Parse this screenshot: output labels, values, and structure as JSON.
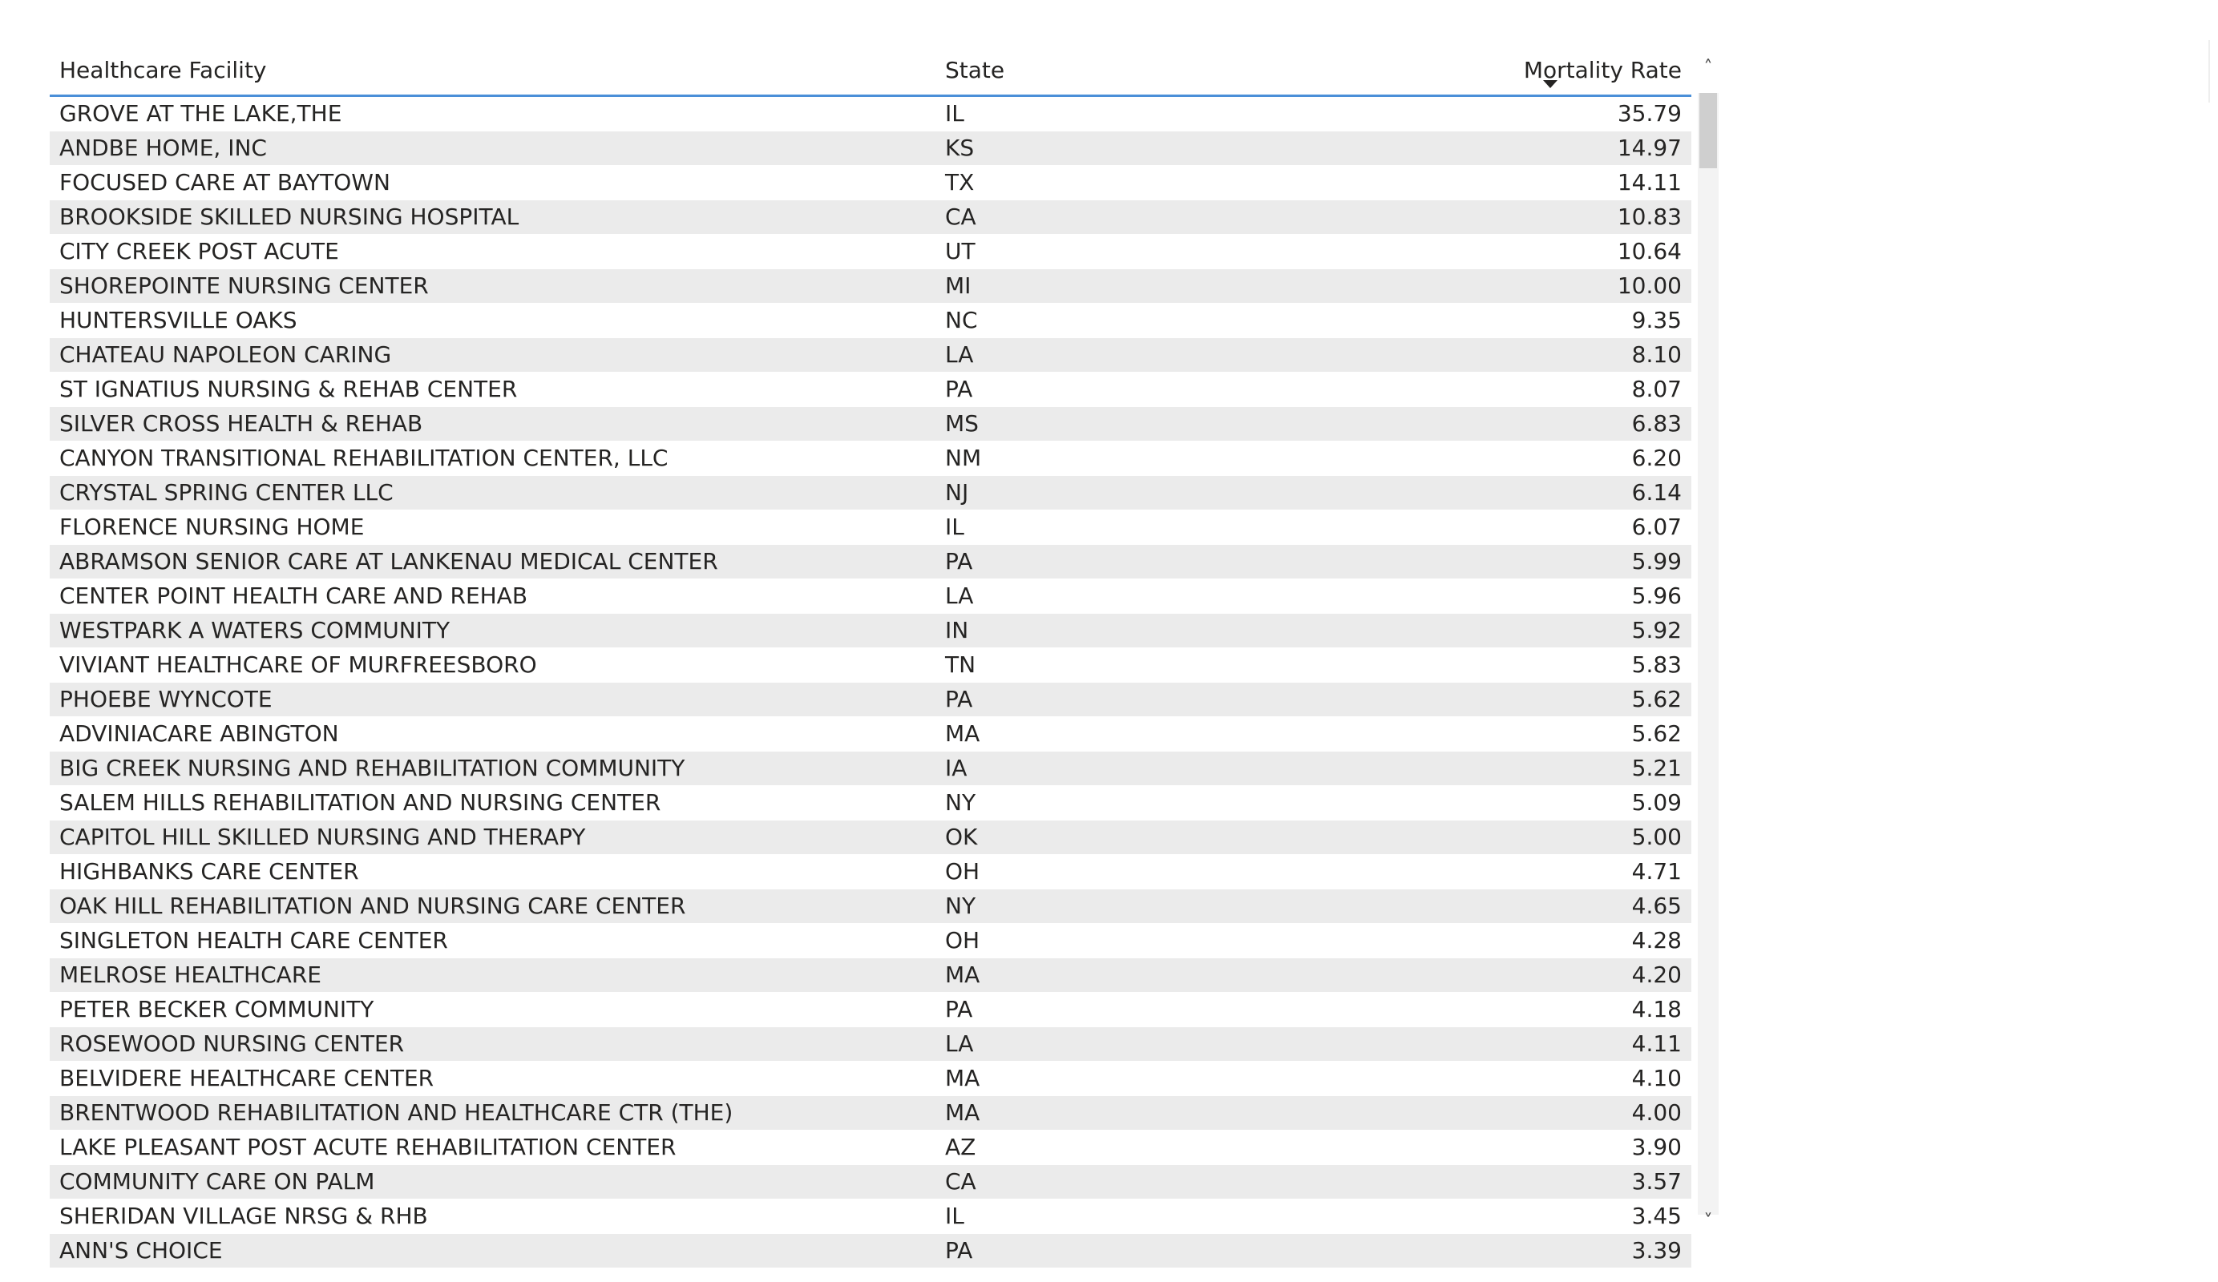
{
  "table": {
    "headers": {
      "facility": "Healthcare Facility",
      "state": "State",
      "rate": "Mortality Rate"
    },
    "sort": {
      "column": "Mortality Rate",
      "direction": "descending"
    },
    "rows": [
      {
        "facility": "GROVE AT THE LAKE,THE",
        "state": "IL",
        "rate": "35.79"
      },
      {
        "facility": "ANDBE HOME, INC",
        "state": "KS",
        "rate": "14.97"
      },
      {
        "facility": "FOCUSED CARE AT BAYTOWN",
        "state": "TX",
        "rate": "14.11"
      },
      {
        "facility": "BROOKSIDE SKILLED NURSING HOSPITAL",
        "state": "CA",
        "rate": "10.83"
      },
      {
        "facility": "CITY CREEK POST ACUTE",
        "state": "UT",
        "rate": "10.64"
      },
      {
        "facility": "SHOREPOINTE NURSING CENTER",
        "state": "MI",
        "rate": "10.00"
      },
      {
        "facility": "HUNTERSVILLE OAKS",
        "state": "NC",
        "rate": "9.35"
      },
      {
        "facility": "CHATEAU NAPOLEON CARING",
        "state": "LA",
        "rate": "8.10"
      },
      {
        "facility": "ST IGNATIUS NURSING & REHAB CENTER",
        "state": "PA",
        "rate": "8.07"
      },
      {
        "facility": "SILVER CROSS HEALTH & REHAB",
        "state": "MS",
        "rate": "6.83"
      },
      {
        "facility": "CANYON TRANSITIONAL REHABILITATION CENTER, LLC",
        "state": "NM",
        "rate": "6.20"
      },
      {
        "facility": "CRYSTAL SPRING CENTER LLC",
        "state": "NJ",
        "rate": "6.14"
      },
      {
        "facility": "FLORENCE NURSING HOME",
        "state": "IL",
        "rate": "6.07"
      },
      {
        "facility": "ABRAMSON SENIOR CARE AT LANKENAU MEDICAL CENTER",
        "state": "PA",
        "rate": "5.99"
      },
      {
        "facility": "CENTER POINT HEALTH CARE AND REHAB",
        "state": "LA",
        "rate": "5.96"
      },
      {
        "facility": "WESTPARK A WATERS COMMUNITY",
        "state": "IN",
        "rate": "5.92"
      },
      {
        "facility": "VIVIANT HEALTHCARE OF MURFREESBORO",
        "state": "TN",
        "rate": "5.83"
      },
      {
        "facility": "PHOEBE WYNCOTE",
        "state": "PA",
        "rate": "5.62"
      },
      {
        "facility": "ADVINIACARE ABINGTON",
        "state": "MA",
        "rate": "5.62"
      },
      {
        "facility": "BIG CREEK NURSING AND REHABILITATION COMMUNITY",
        "state": "IA",
        "rate": "5.21"
      },
      {
        "facility": "SALEM HILLS REHABILITATION AND NURSING CENTER",
        "state": "NY",
        "rate": "5.09"
      },
      {
        "facility": "CAPITOL HILL SKILLED NURSING AND THERAPY",
        "state": "OK",
        "rate": "5.00"
      },
      {
        "facility": "HIGHBANKS CARE CENTER",
        "state": "OH",
        "rate": "4.71"
      },
      {
        "facility": "OAK HILL REHABILITATION AND NURSING CARE CENTER",
        "state": "NY",
        "rate": "4.65"
      },
      {
        "facility": "SINGLETON HEALTH CARE CENTER",
        "state": "OH",
        "rate": "4.28"
      },
      {
        "facility": "MELROSE HEALTHCARE",
        "state": "MA",
        "rate": "4.20"
      },
      {
        "facility": "PETER BECKER COMMUNITY",
        "state": "PA",
        "rate": "4.18"
      },
      {
        "facility": "ROSEWOOD NURSING CENTER",
        "state": "LA",
        "rate": "4.11"
      },
      {
        "facility": "BELVIDERE HEALTHCARE CENTER",
        "state": "MA",
        "rate": "4.10"
      },
      {
        "facility": "BRENTWOOD REHABILITATION AND HEALTHCARE CTR (THE)",
        "state": "MA",
        "rate": "4.00"
      },
      {
        "facility": "LAKE PLEASANT POST ACUTE REHABILITATION CENTER",
        "state": "AZ",
        "rate": "3.90"
      },
      {
        "facility": "COMMUNITY CARE ON PALM",
        "state": "CA",
        "rate": "3.57"
      },
      {
        "facility": "SHERIDAN VILLAGE NRSG & RHB",
        "state": "IL",
        "rate": "3.45"
      },
      {
        "facility": "ANN'S CHOICE",
        "state": "PA",
        "rate": "3.39"
      }
    ]
  },
  "scrollbar": {
    "up_glyph": "˄",
    "down_glyph": "˅",
    "thumb_position_fraction": 0.0
  }
}
